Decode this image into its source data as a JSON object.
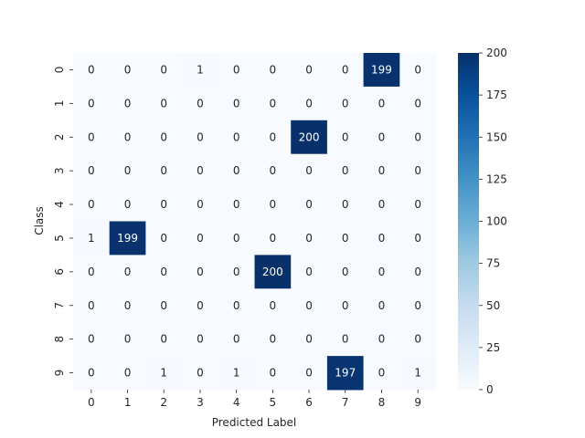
{
  "chart_data": {
    "type": "heatmap",
    "title": "",
    "xlabel": "Predicted Label",
    "ylabel": "Class",
    "x_categories": [
      "0",
      "1",
      "2",
      "3",
      "4",
      "5",
      "6",
      "7",
      "8",
      "9"
    ],
    "y_categories": [
      "0",
      "1",
      "2",
      "3",
      "4",
      "5",
      "6",
      "7",
      "8",
      "9"
    ],
    "values": [
      [
        0,
        0,
        0,
        1,
        0,
        0,
        0,
        0,
        199,
        0
      ],
      [
        0,
        0,
        0,
        0,
        0,
        0,
        0,
        0,
        0,
        0
      ],
      [
        0,
        0,
        0,
        0,
        0,
        0,
        200,
        0,
        0,
        0
      ],
      [
        0,
        0,
        0,
        0,
        0,
        0,
        0,
        0,
        0,
        0
      ],
      [
        0,
        0,
        0,
        0,
        0,
        0,
        0,
        0,
        0,
        0
      ],
      [
        1,
        199,
        0,
        0,
        0,
        0,
        0,
        0,
        0,
        0
      ],
      [
        0,
        0,
        0,
        0,
        0,
        200,
        0,
        0,
        0,
        0
      ],
      [
        0,
        0,
        0,
        0,
        0,
        0,
        0,
        0,
        0,
        0
      ],
      [
        0,
        0,
        0,
        0,
        0,
        0,
        0,
        0,
        0,
        0
      ],
      [
        0,
        0,
        1,
        0,
        1,
        0,
        0,
        197,
        0,
        1
      ]
    ],
    "colorbar": {
      "range": [
        0,
        200
      ],
      "ticks": [
        "0",
        "25",
        "50",
        "75",
        "100",
        "125",
        "150",
        "175",
        "200"
      ],
      "colormap": "Blues",
      "low_color": "#f7fbff",
      "high_color": "#08306b"
    },
    "grid": false
  }
}
